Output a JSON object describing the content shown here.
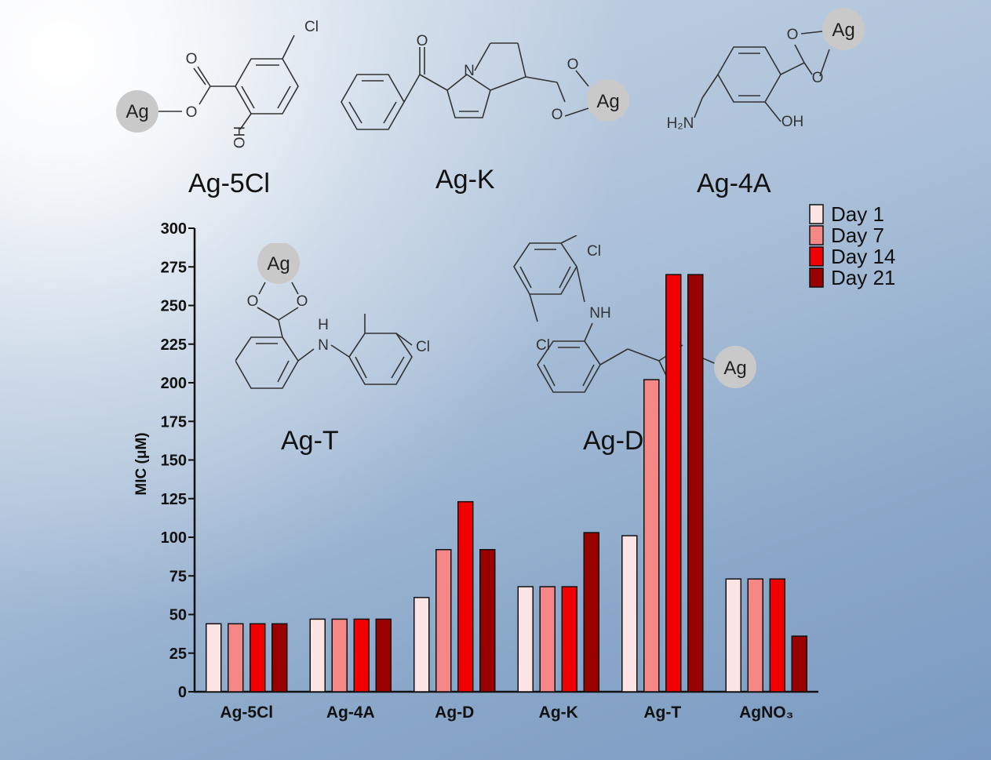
{
  "captions": {
    "ag5cl": "Ag-5Cl",
    "agk": "Ag-K",
    "ag4a": "Ag-4A",
    "agt": "Ag-T",
    "agd": "Ag-D"
  },
  "atoms": {
    "ag": "Ag",
    "o": "O",
    "cl": "Cl",
    "n": "N",
    "nh": "NH",
    "h": "H",
    "ho": "HO",
    "oh": "OH",
    "h2n": "H₂N"
  },
  "chart_data": {
    "type": "bar",
    "title": "",
    "xlabel": "",
    "ylabel": "MIC (μM)",
    "ylim": [
      0,
      300
    ],
    "yticks": [
      0,
      25,
      50,
      75,
      100,
      125,
      150,
      175,
      200,
      225,
      250,
      275,
      300
    ],
    "categories": [
      "Ag-5Cl",
      "Ag-4A",
      "Ag-D",
      "Ag-K",
      "Ag-T",
      "AgNO3"
    ],
    "category_labels": [
      "Ag-5Cl",
      "Ag-4A",
      "Ag-D",
      "Ag-K",
      "Ag-T",
      "AgNO₃"
    ],
    "series": [
      {
        "name": "Day 1",
        "color": "#fde4e4",
        "values": [
          44,
          47,
          61,
          68,
          101,
          73
        ]
      },
      {
        "name": "Day 7",
        "color": "#f58787",
        "values": [
          44,
          47,
          92,
          68,
          202,
          73
        ]
      },
      {
        "name": "Day 14",
        "color": "#f00000",
        "values": [
          44,
          47,
          123,
          68,
          270,
          73
        ]
      },
      {
        "name": "Day 21",
        "color": "#990000",
        "values": [
          44,
          47,
          92,
          103,
          270,
          36
        ]
      }
    ],
    "legend_position": "top-right",
    "grid": false
  }
}
